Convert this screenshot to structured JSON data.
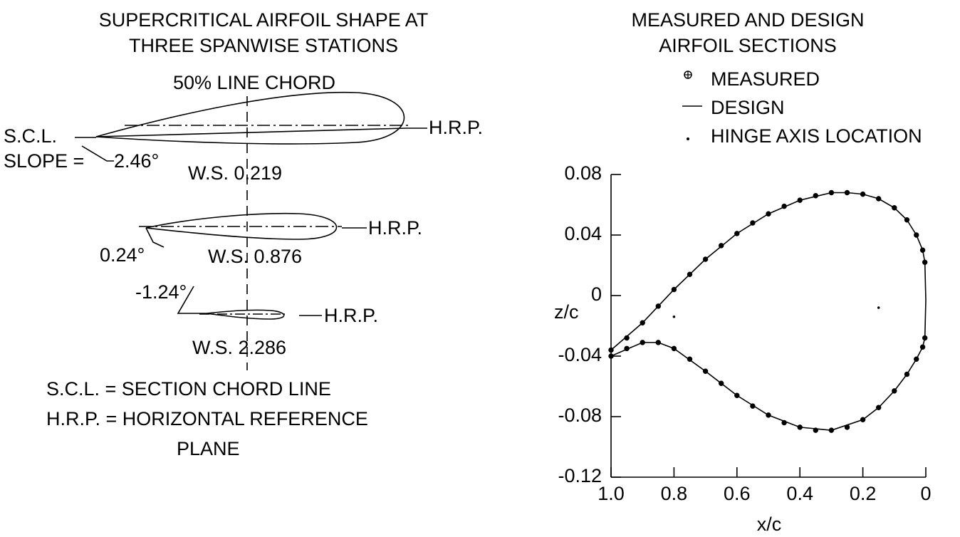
{
  "diagram": {
    "title": [
      "SUPERCRITICAL AIRFOIL SHAPE AT",
      "THREE SPANWISE STATIONS"
    ],
    "chord_label": "50% LINE CHORD",
    "scl": "S.C.L.",
    "slope": "SLOPE =",
    "stations": [
      {
        "angle": "2.46°",
        "station": "W.S. 0.219",
        "hrp": "H.R.P."
      },
      {
        "angle": "0.24°",
        "station": "W.S. 0.876",
        "hrp": "H.R.P."
      },
      {
        "angle": "-1.24°",
        "station": "W.S. 2.286",
        "hrp": "H.R.P."
      }
    ],
    "notes": [
      "S.C.L. = SECTION CHORD LINE",
      "H.R.P. = HORIZONTAL REFERENCE",
      "PLANE"
    ]
  },
  "chart_data": {
    "type": "line",
    "title": [
      "MEASURED AND DESIGN",
      "AIRFOIL SECTIONS"
    ],
    "x_label": "x/c",
    "y_label": "z/c",
    "xlim": [
      1,
      0
    ],
    "xticks": [
      {
        "value": 1,
        "label": "1.0"
      },
      0.8,
      0.6,
      0.4,
      0.2,
      0
    ],
    "ylim": [
      -0.12,
      0.08
    ],
    "yticks": [
      0.08,
      0.04,
      0,
      -0.04,
      -0.08,
      -0.12
    ],
    "series": [
      {
        "name": "MEASURED",
        "marker": "circle-plus",
        "color": "#000000",
        "x": [
          1.0,
          0.95,
          0.9,
          0.85,
          0.8,
          0.75,
          0.7,
          0.65,
          0.6,
          0.55,
          0.5,
          0.45,
          0.4,
          0.35,
          0.3,
          0.25,
          0.2,
          0.15,
          0.1,
          0.06,
          0.03,
          0.01,
          0.003,
          1.0,
          0.95,
          0.9,
          0.85,
          0.8,
          0.75,
          0.7,
          0.65,
          0.6,
          0.55,
          0.5,
          0.45,
          0.4,
          0.35,
          0.3,
          0.25,
          0.2,
          0.15,
          0.1,
          0.06,
          0.03,
          0.01,
          0.003
        ],
        "values": [
          -0.036,
          -0.028,
          -0.018,
          -0.007,
          0.004,
          0.014,
          0.024,
          0.033,
          0.041,
          0.048,
          0.054,
          0.059,
          0.063,
          0.066,
          0.068,
          0.068,
          0.067,
          0.064,
          0.058,
          0.05,
          0.04,
          0.03,
          0.022,
          -0.04,
          -0.035,
          -0.031,
          -0.031,
          -0.035,
          -0.042,
          -0.05,
          -0.058,
          -0.066,
          -0.073,
          -0.079,
          -0.084,
          -0.087,
          -0.089,
          -0.089,
          -0.087,
          -0.082,
          -0.074,
          -0.063,
          -0.052,
          -0.042,
          -0.034,
          -0.028
        ]
      },
      {
        "name": "DESIGN",
        "marker": "none",
        "color": "#000000",
        "x": [
          1.0,
          0.9,
          0.8,
          0.7,
          0.6,
          0.5,
          0.4,
          0.3,
          0.25,
          0.2,
          0.15,
          0.1,
          0.06,
          0.03,
          0.01,
          0.003,
          0.0,
          0.003,
          0.01,
          0.03,
          0.06,
          0.1,
          0.15,
          0.2,
          0.3,
          0.4,
          0.5,
          0.6,
          0.7,
          0.8,
          0.85,
          0.9,
          1.0
        ],
        "values": [
          -0.036,
          -0.018,
          0.004,
          0.024,
          0.041,
          0.054,
          0.063,
          0.068,
          0.068,
          0.067,
          0.064,
          0.058,
          0.05,
          0.04,
          0.03,
          0.022,
          -0.003,
          -0.028,
          -0.034,
          -0.042,
          -0.052,
          -0.063,
          -0.074,
          -0.082,
          -0.089,
          -0.087,
          -0.079,
          -0.066,
          -0.05,
          -0.035,
          -0.031,
          -0.031,
          -0.04
        ]
      },
      {
        "name": "HINGE AXIS LOCATION",
        "marker": "dot",
        "color": "#000000",
        "x": [
          0.8,
          0.15
        ],
        "values": [
          -0.014,
          -0.008
        ]
      }
    ]
  }
}
